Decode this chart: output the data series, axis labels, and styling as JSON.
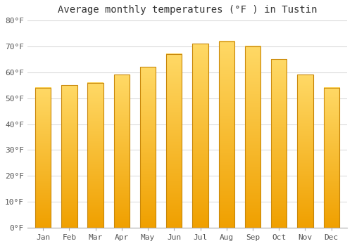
{
  "title": "Average monthly temperatures (°F ) in Tustin",
  "months": [
    "Jan",
    "Feb",
    "Mar",
    "Apr",
    "May",
    "Jun",
    "Jul",
    "Aug",
    "Sep",
    "Oct",
    "Nov",
    "Dec"
  ],
  "values": [
    54,
    55,
    56,
    59,
    62,
    67,
    71,
    72,
    70,
    65,
    59,
    54
  ],
  "bar_color_bottom": "#F0A000",
  "bar_color_top": "#FFD966",
  "bar_edge_color": "#C8870A",
  "ylim": [
    0,
    80
  ],
  "yticks": [
    0,
    10,
    20,
    30,
    40,
    50,
    60,
    70,
    80
  ],
  "plot_bg_color": "#FFFFFF",
  "fig_bg_color": "#FFFFFF",
  "grid_color": "#DDDDDD",
  "title_fontsize": 10,
  "tick_fontsize": 8,
  "figsize": [
    5.0,
    3.5
  ],
  "dpi": 100
}
